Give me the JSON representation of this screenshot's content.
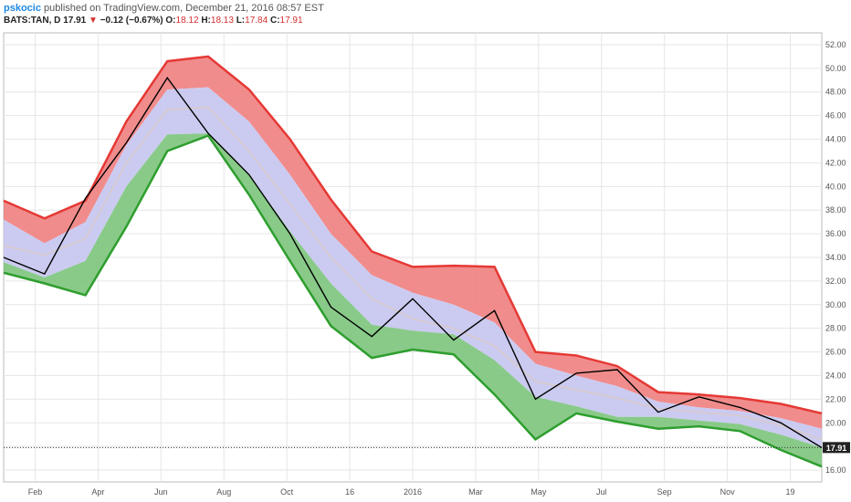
{
  "header": {
    "author": "pskocic",
    "published": "published on TradingView.com, December 21, 2016 08:57 EST"
  },
  "quote": {
    "symbol": "BATS:TAN, D",
    "last": "17.91",
    "change": "−0.12 (−0.67%)",
    "o_label": "O:",
    "o": "18.12",
    "h_label": "H:",
    "h": "18.13",
    "l_label": "L:",
    "l": "17.84",
    "c_label": "C:",
    "c": "17.91"
  },
  "chart_data": {
    "type": "line",
    "title": "",
    "x_ticks": [
      "Feb",
      "Apr",
      "Jun",
      "Aug",
      "Oct",
      "16",
      "2016",
      "Mar",
      "May",
      "Jul",
      "Sep",
      "Nov",
      "19"
    ],
    "y_ticks": [
      16,
      18,
      20,
      22,
      24,
      26,
      28,
      30,
      32,
      34,
      36,
      38,
      40,
      42,
      44,
      46,
      48,
      50,
      52
    ],
    "ylim": [
      15,
      53
    ],
    "grid": true,
    "last_price_label": "17.91",
    "last_price": 17.91,
    "colors": {
      "upper_band": "#f08080",
      "mid_band": "#c5c5f0",
      "lower_band": "#7cc47c",
      "upper_edge": "#e53935",
      "lower_edge": "#2e9e2e",
      "price": "#000000",
      "midline": "#d9c9c9"
    },
    "time_index": [
      0,
      5,
      10,
      15,
      20,
      25,
      30,
      35,
      40,
      45,
      50,
      55,
      60,
      65,
      70,
      75,
      80,
      85,
      90,
      95,
      100
    ],
    "series": [
      {
        "role": "upper_band",
        "values": [
          38.8,
          37.3,
          38.8,
          45.5,
          50.6,
          51.0,
          48.2,
          44.0,
          38.9,
          34.5,
          33.2,
          33.3,
          33.2,
          26.0,
          25.7,
          24.8,
          22.6,
          22.4,
          22.1,
          21.6,
          20.8
        ]
      },
      {
        "role": "upper_inner",
        "values": [
          37.2,
          35.2,
          37.0,
          43.5,
          48.2,
          48.4,
          45.5,
          41.0,
          36.0,
          32.5,
          31.0,
          30.0,
          28.5,
          25.0,
          24.0,
          23.1,
          21.8,
          21.3,
          21.0,
          20.4,
          19.5
        ]
      },
      {
        "role": "midline",
        "values": [
          35.0,
          34.2,
          35.6,
          42.0,
          46.5,
          46.7,
          43.0,
          38.5,
          34.0,
          30.5,
          28.8,
          28.0,
          26.5,
          23.5,
          22.8,
          22.1,
          21.2,
          20.9,
          20.6,
          19.8,
          18.6
        ]
      },
      {
        "role": "lower_inner",
        "values": [
          33.6,
          32.3,
          33.7,
          40.0,
          44.4,
          44.5,
          41.0,
          36.2,
          31.8,
          28.3,
          27.8,
          27.5,
          25.3,
          22.2,
          21.4,
          20.5,
          20.5,
          20.2,
          19.9,
          19.0,
          17.9
        ]
      },
      {
        "role": "lower_band",
        "values": [
          32.7,
          31.8,
          30.8,
          36.6,
          43.0,
          44.3,
          39.3,
          33.7,
          28.2,
          25.5,
          26.2,
          25.8,
          22.4,
          18.6,
          20.8,
          20.1,
          19.5,
          19.7,
          19.3,
          17.7,
          16.3
        ]
      },
      {
        "role": "price",
        "values": [
          34.0,
          32.6,
          39.0,
          43.7,
          49.2,
          44.5,
          41.0,
          36.0,
          29.8,
          27.3,
          30.5,
          27.0,
          29.5,
          22.0,
          24.2,
          24.5,
          20.9,
          22.2,
          21.3,
          20.0,
          17.9
        ]
      }
    ]
  }
}
